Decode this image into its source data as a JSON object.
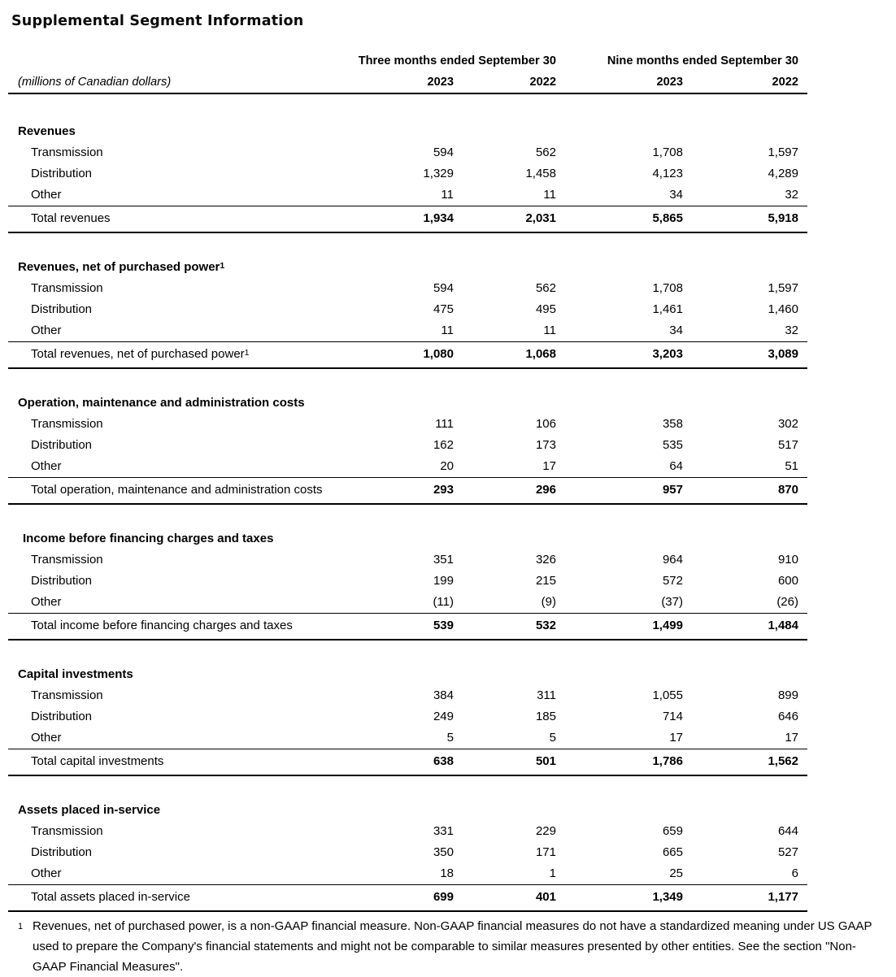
{
  "title": "Supplemental Segment Information",
  "table": {
    "unit_label": "(millions of Canadian dollars)",
    "column_groups": [
      "Three months ended September 30",
      "Nine months ended September 30"
    ],
    "year_columns": [
      "2023",
      "2022",
      "2023",
      "2022"
    ],
    "sections": [
      {
        "heading": "Revenues",
        "rows": [
          {
            "label": "Transmission",
            "values": [
              "594",
              "562",
              "1,708",
              "1,597"
            ]
          },
          {
            "label": "Distribution",
            "values": [
              "1,329",
              "1,458",
              "4,123",
              "4,289"
            ]
          },
          {
            "label": "Other",
            "values": [
              "11",
              "11",
              "34",
              "32"
            ]
          }
        ],
        "total": {
          "label": "Total revenues",
          "values": [
            "1,934",
            "2,031",
            "5,865",
            "5,918"
          ]
        }
      },
      {
        "heading": "Revenues, net of purchased power",
        "heading_sup": "1",
        "rows": [
          {
            "label": "Transmission",
            "values": [
              "594",
              "562",
              "1,708",
              "1,597"
            ]
          },
          {
            "label": "Distribution",
            "values": [
              "475",
              "495",
              "1,461",
              "1,460"
            ]
          },
          {
            "label": "Other",
            "values": [
              "11",
              "11",
              "34",
              "32"
            ]
          }
        ],
        "total": {
          "label": "Total revenues, net of purchased power",
          "sup": "1",
          "values": [
            "1,080",
            "1,068",
            "3,203",
            "3,089"
          ]
        }
      },
      {
        "heading": "Operation, maintenance and administration costs",
        "rows": [
          {
            "label": "Transmission",
            "values": [
              "111",
              "106",
              "358",
              "302"
            ]
          },
          {
            "label": "Distribution",
            "values": [
              "162",
              "173",
              "535",
              "517"
            ]
          },
          {
            "label": "Other",
            "values": [
              "20",
              "17",
              "64",
              "51"
            ]
          }
        ],
        "total": {
          "label": "Total operation, maintenance and administration costs",
          "values": [
            "293",
            "296",
            "957",
            "870"
          ]
        }
      },
      {
        "heading": "Income before financing charges and taxes",
        "rows": [
          {
            "label": "Transmission",
            "values": [
              "351",
              "326",
              "964",
              "910"
            ]
          },
          {
            "label": "Distribution",
            "values": [
              "199",
              "215",
              "572",
              "600"
            ]
          },
          {
            "label": "Other",
            "values": [
              "(11)",
              "(9)",
              "(37)",
              "(26)"
            ]
          }
        ],
        "total": {
          "label": "Total income before financing charges and taxes",
          "values": [
            "539",
            "532",
            "1,499",
            "1,484"
          ]
        }
      },
      {
        "heading": "Capital investments",
        "rows": [
          {
            "label": "Transmission",
            "values": [
              "384",
              "311",
              "1,055",
              "899"
            ]
          },
          {
            "label": "Distribution",
            "values": [
              "249",
              "185",
              "714",
              "646"
            ]
          },
          {
            "label": "Other",
            "values": [
              "5",
              "5",
              "17",
              "17"
            ]
          }
        ],
        "total": {
          "label": "Total capital investments",
          "values": [
            "638",
            "501",
            "1,786",
            "1,562"
          ]
        }
      },
      {
        "heading": "Assets placed in-service",
        "rows": [
          {
            "label": "Transmission",
            "values": [
              "331",
              "229",
              "659",
              "644"
            ]
          },
          {
            "label": "Distribution",
            "values": [
              "350",
              "171",
              "665",
              "527"
            ]
          },
          {
            "label": "Other",
            "values": [
              "18",
              "1",
              "25",
              "6"
            ]
          }
        ],
        "total": {
          "label": "Total assets placed in-service",
          "values": [
            "699",
            "401",
            "1,349",
            "1,177"
          ]
        }
      }
    ]
  },
  "footnote": {
    "marker": "1",
    "text": "Revenues, net of purchased power, is a non-GAAP financial measure. Non-GAAP financial measures do not have a standardized meaning under US GAAP used to prepare the Company's financial statements and might not be comparable to similar measures presented by other entities. See the section \"Non-GAAP Financial Measures\"."
  },
  "colors": {
    "background": "#ffffff",
    "text": "#000000",
    "rule": "#000000"
  }
}
